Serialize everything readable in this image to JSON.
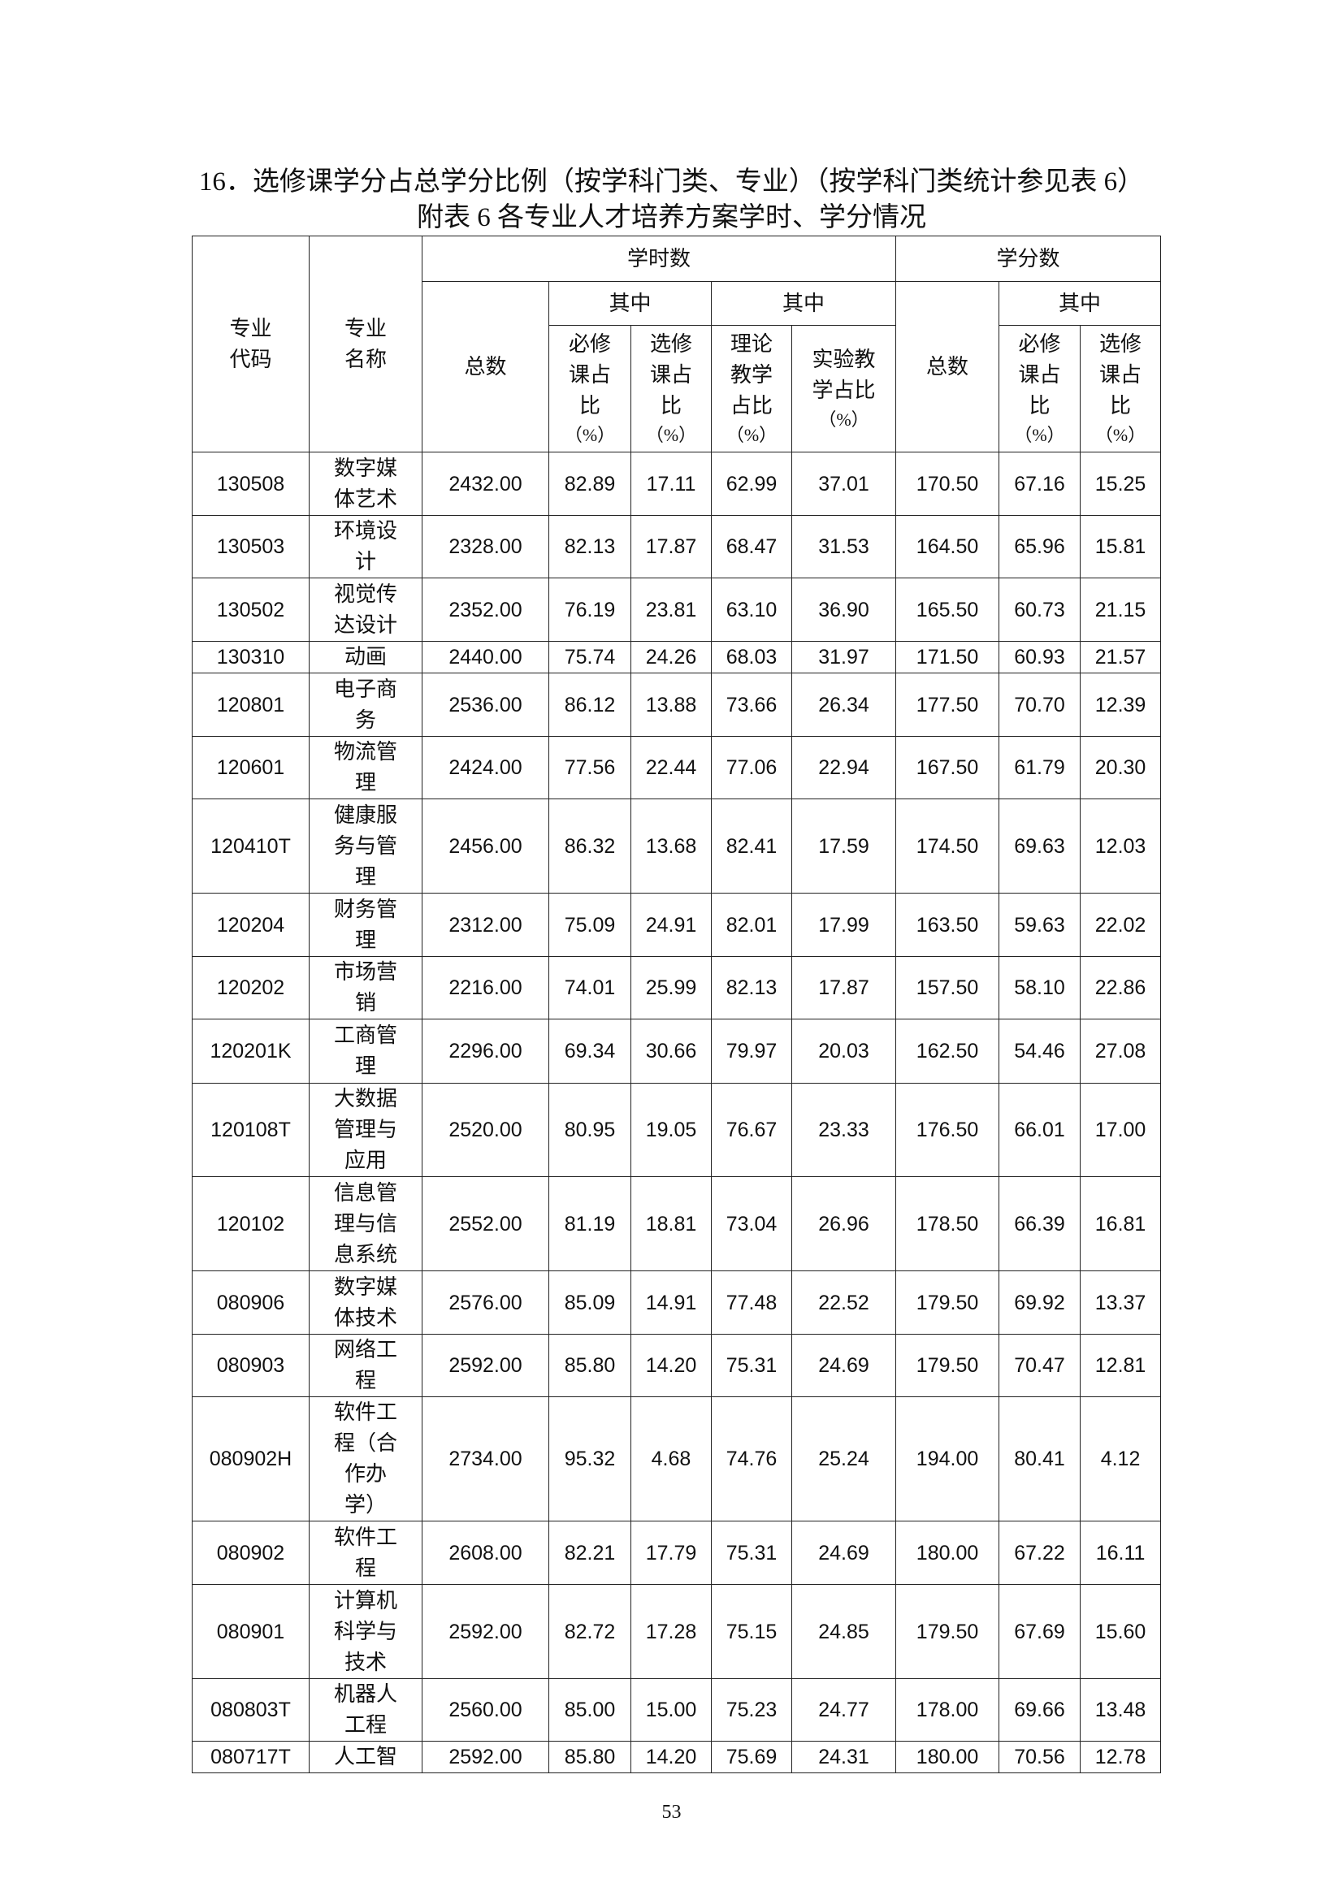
{
  "heading": "16．选修课学分占总学分比例（按学科门类、专业）（按学科门类统计参见表 6）",
  "table_title": "附表 6  各专业人才培养方案学时、学分情况",
  "headers": {
    "code": "专业代码",
    "name": "专业名称",
    "hours_group": "学时数",
    "credits_group": "学分数",
    "total": "总数",
    "of_which": "其中",
    "required_ratio": "必修课占比",
    "elective_ratio": "选修课占比",
    "theory_ratio": "理论教学占比",
    "lab_ratio": "实验教学占比",
    "pct": "（%）"
  },
  "rows": [
    [
      "130508",
      "数字媒体艺术",
      "2432.00",
      "82.89",
      "17.11",
      "62.99",
      "37.01",
      "170.50",
      "67.16",
      "15.25"
    ],
    [
      "130503",
      "环境设计",
      "2328.00",
      "82.13",
      "17.87",
      "68.47",
      "31.53",
      "164.50",
      "65.96",
      "15.81"
    ],
    [
      "130502",
      "视觉传达设计",
      "2352.00",
      "76.19",
      "23.81",
      "63.10",
      "36.90",
      "165.50",
      "60.73",
      "21.15"
    ],
    [
      "130310",
      "动画",
      "2440.00",
      "75.74",
      "24.26",
      "68.03",
      "31.97",
      "171.50",
      "60.93",
      "21.57"
    ],
    [
      "120801",
      "电子商务",
      "2536.00",
      "86.12",
      "13.88",
      "73.66",
      "26.34",
      "177.50",
      "70.70",
      "12.39"
    ],
    [
      "120601",
      "物流管理",
      "2424.00",
      "77.56",
      "22.44",
      "77.06",
      "22.94",
      "167.50",
      "61.79",
      "20.30"
    ],
    [
      "120410T",
      "健康服务与管理",
      "2456.00",
      "86.32",
      "13.68",
      "82.41",
      "17.59",
      "174.50",
      "69.63",
      "12.03"
    ],
    [
      "120204",
      "财务管理",
      "2312.00",
      "75.09",
      "24.91",
      "82.01",
      "17.99",
      "163.50",
      "59.63",
      "22.02"
    ],
    [
      "120202",
      "市场营销",
      "2216.00",
      "74.01",
      "25.99",
      "82.13",
      "17.87",
      "157.50",
      "58.10",
      "22.86"
    ],
    [
      "120201K",
      "工商管理",
      "2296.00",
      "69.34",
      "30.66",
      "79.97",
      "20.03",
      "162.50",
      "54.46",
      "27.08"
    ],
    [
      "120108T",
      "大数据管理与应用",
      "2520.00",
      "80.95",
      "19.05",
      "76.67",
      "23.33",
      "176.50",
      "66.01",
      "17.00"
    ],
    [
      "120102",
      "信息管理与信息系统",
      "2552.00",
      "81.19",
      "18.81",
      "73.04",
      "26.96",
      "178.50",
      "66.39",
      "16.81"
    ],
    [
      "080906",
      "数字媒体技术",
      "2576.00",
      "85.09",
      "14.91",
      "77.48",
      "22.52",
      "179.50",
      "69.92",
      "13.37"
    ],
    [
      "080903",
      "网络工程",
      "2592.00",
      "85.80",
      "14.20",
      "75.31",
      "24.69",
      "179.50",
      "70.47",
      "12.81"
    ],
    [
      "080902H",
      "软件工程（合作办学）",
      "2734.00",
      "95.32",
      "4.68",
      "74.76",
      "25.24",
      "194.00",
      "80.41",
      "4.12"
    ],
    [
      "080902",
      "软件工程",
      "2608.00",
      "82.21",
      "17.79",
      "75.31",
      "24.69",
      "180.00",
      "67.22",
      "16.11"
    ],
    [
      "080901",
      "计算机科学与技术",
      "2592.00",
      "82.72",
      "17.28",
      "75.15",
      "24.85",
      "179.50",
      "67.69",
      "15.60"
    ],
    [
      "080803T",
      "机器人工程",
      "2560.00",
      "85.00",
      "15.00",
      "75.23",
      "24.77",
      "178.00",
      "69.66",
      "13.48"
    ],
    [
      "080717T",
      "人工智",
      "2592.00",
      "85.80",
      "14.20",
      "75.69",
      "24.31",
      "180.00",
      "70.56",
      "12.78"
    ]
  ],
  "page_number": "53"
}
